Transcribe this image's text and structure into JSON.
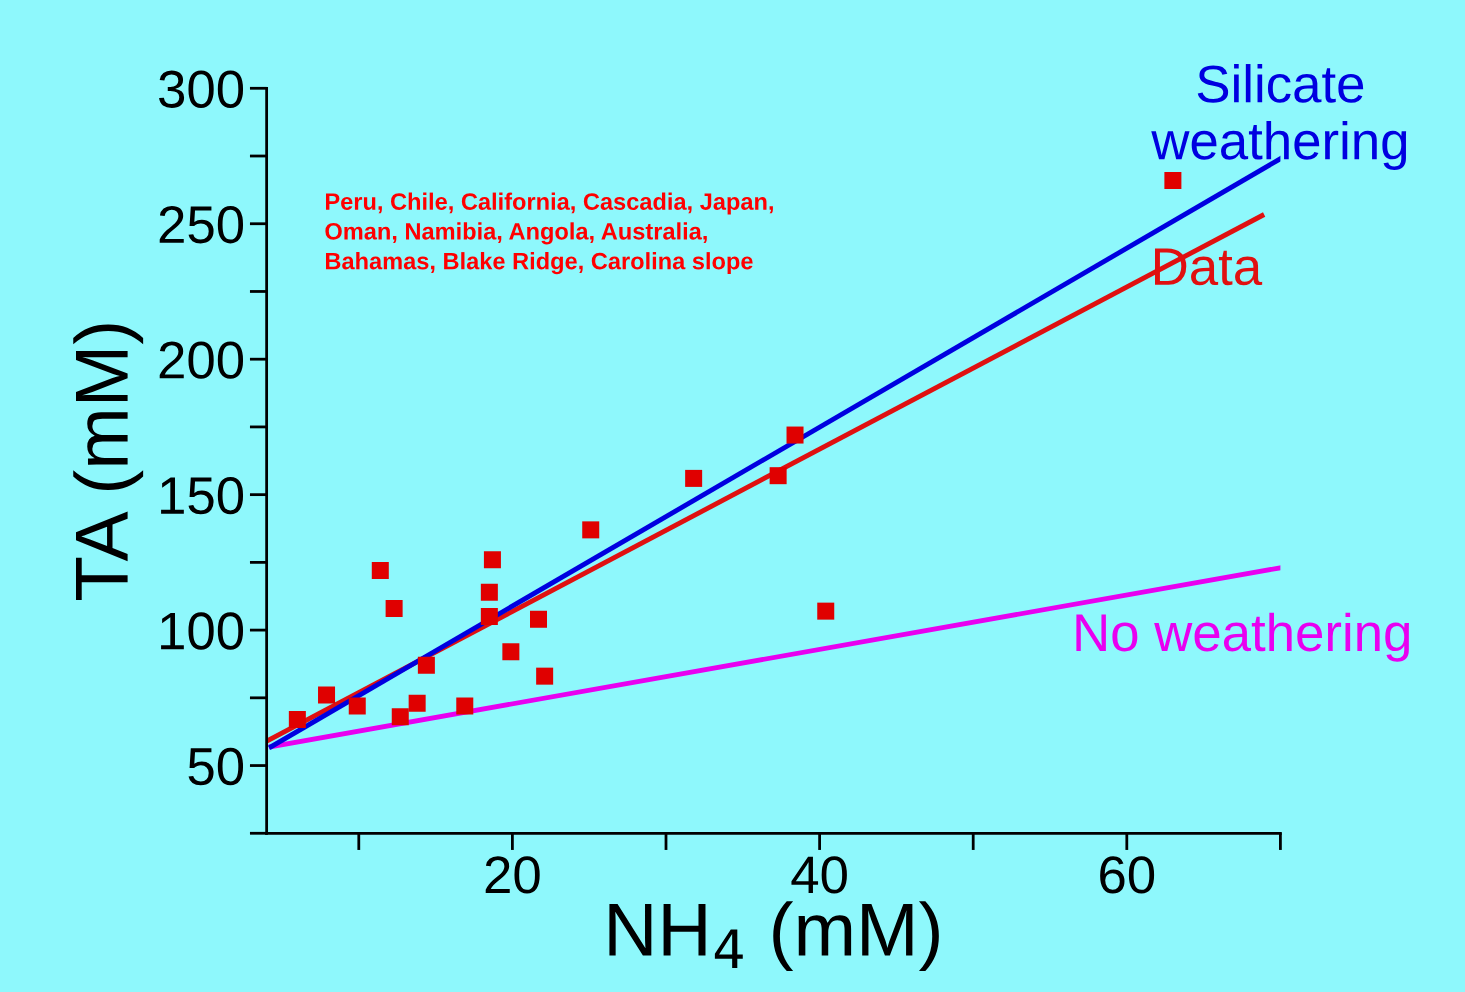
{
  "chart_data": {
    "type": "scatter",
    "xlabel": "NH$_{4}$ (mM)",
    "ylabel": "TA (mM)",
    "annotations": [
      "Peru, Chile, California, Cascadia, Japan,\nOman, Namibia, Angola, Australia,\nBahamas, Blake Ridge, Carolina slope"
    ],
    "xlim": [
      4,
      70
    ],
    "ylim": [
      25,
      300
    ],
    "xticks": [
      20,
      40,
      60
    ],
    "yticks": [
      50,
      100,
      150,
      200,
      250,
      300
    ],
    "grid": false,
    "series": [
      {
        "marker": "square",
        "color": "#e00000",
        "x": [
          6.0,
          7.9,
          9.9,
          11.4,
          12.3,
          12.7,
          13.8,
          14.4,
          16.9,
          18.5,
          18.5,
          18.7,
          19.9,
          21.7,
          22.1,
          25.1,
          31.8,
          37.3,
          38.4,
          40.4,
          63.0
        ],
        "values": [
          67,
          76,
          72,
          122,
          108,
          68,
          73,
          87,
          72,
          114,
          105,
          126,
          92,
          104,
          83,
          137,
          156,
          157,
          172,
          107,
          266
        ]
      },
      {
        "type": "line",
        "name": "No weathering",
        "color": "#e800f0",
        "x": [
          4.3,
          70
        ],
        "values": [
          57,
          123
        ]
      },
      {
        "type": "line",
        "name": "Data",
        "color": "#e01010",
        "x": [
          4,
          68.8
        ],
        "values": [
          59,
          253
        ]
      },
      {
        "type": "line",
        "name": "Silicate\nweathering",
        "color": "#0000e0",
        "x": [
          4.3,
          70
        ],
        "values": [
          57,
          274
        ]
      }
    ]
  }
}
